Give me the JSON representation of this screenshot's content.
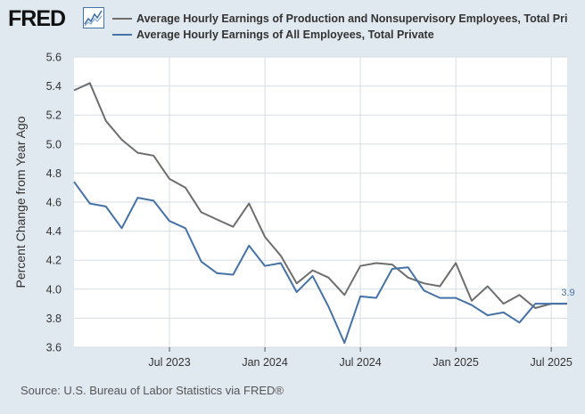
{
  "header": {
    "logo_text": "FRED",
    "logo_icon": "fred-chart-icon"
  },
  "footer": {
    "source": "Source: U.S. Bureau of Labor Statistics via FRED®"
  },
  "colors": {
    "background": "#e1e9f0",
    "plot_background": "#ffffff",
    "gridline": "#d6dde3"
  },
  "chart_data": {
    "type": "line",
    "title": "",
    "xlabel": "",
    "ylabel": "Percent Change from Year Ago",
    "ylim": [
      3.6,
      5.6
    ],
    "yticks": [
      "3.6",
      "3.8",
      "4.0",
      "4.2",
      "4.4",
      "4.6",
      "4.8",
      "5.0",
      "5.2",
      "5.4",
      "5.6"
    ],
    "xticks": [
      {
        "date": "2023-07",
        "label": "Jul 2023"
      },
      {
        "date": "2024-01",
        "label": "Jan 2024"
      },
      {
        "date": "2024-07",
        "label": "Jul 2024"
      },
      {
        "date": "2025-01",
        "label": "Jan 2025"
      },
      {
        "date": "2025-07",
        "label": "Jul 2025"
      }
    ],
    "xlim": [
      "2023-01",
      "2025-08"
    ],
    "grid": true,
    "legend_position": "top",
    "x": [
      "2023-01",
      "2023-02",
      "2023-03",
      "2023-04",
      "2023-05",
      "2023-06",
      "2023-07",
      "2023-08",
      "2023-09",
      "2023-10",
      "2023-11",
      "2023-12",
      "2024-01",
      "2024-02",
      "2024-03",
      "2024-04",
      "2024-05",
      "2024-06",
      "2024-07",
      "2024-08",
      "2024-09",
      "2024-10",
      "2024-11",
      "2024-12",
      "2025-01",
      "2025-02",
      "2025-03",
      "2025-04",
      "2025-05",
      "2025-06",
      "2025-07",
      "2025-08"
    ],
    "series": [
      {
        "name": "Average Hourly Earnings of Production and Nonsupervisory Employees, Total Pri",
        "color": "#6e6e6e",
        "values": [
          5.37,
          5.42,
          5.16,
          5.03,
          4.94,
          4.92,
          4.76,
          4.7,
          4.53,
          4.48,
          4.43,
          4.59,
          4.36,
          4.23,
          4.04,
          4.13,
          4.08,
          3.96,
          4.16,
          4.18,
          4.17,
          4.08,
          4.04,
          4.02,
          4.18,
          3.92,
          4.02,
          3.9,
          3.96,
          3.87,
          3.9,
          3.9
        ]
      },
      {
        "name": "Average Hourly Earnings of All Employees, Total Private",
        "color": "#4572a7",
        "values": [
          4.74,
          4.59,
          4.57,
          4.42,
          4.63,
          4.61,
          4.47,
          4.42,
          4.19,
          4.11,
          4.1,
          4.3,
          4.16,
          4.18,
          3.98,
          4.09,
          3.88,
          3.63,
          3.95,
          3.94,
          4.14,
          4.15,
          3.99,
          3.94,
          3.94,
          3.89,
          3.82,
          3.84,
          3.77,
          3.9,
          3.9,
          3.9
        ]
      }
    ],
    "annotations": [
      {
        "series": 1,
        "x": "2025-08",
        "label": "3.9"
      }
    ]
  }
}
